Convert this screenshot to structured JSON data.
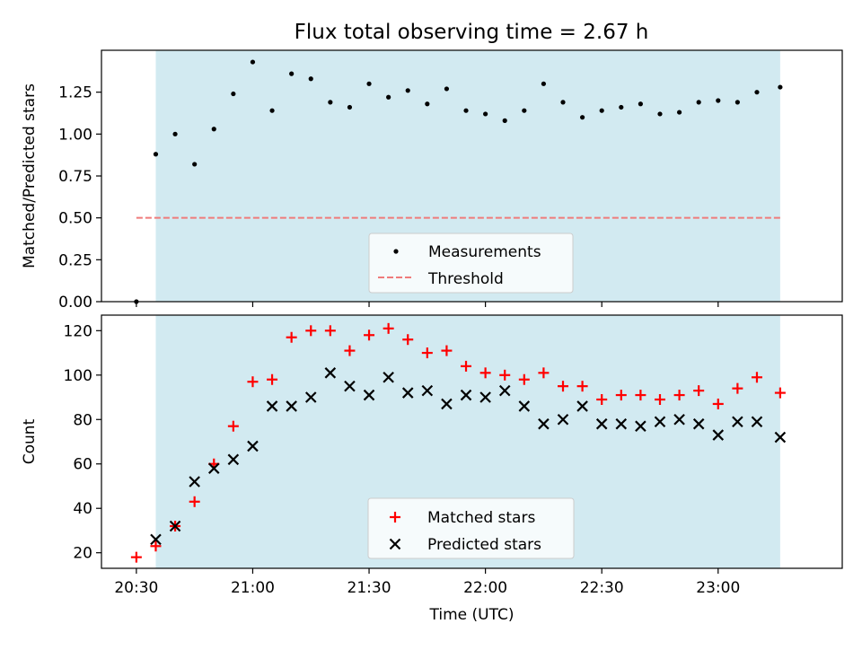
{
  "figure": {
    "title": "Flux total observing time = 2.67 h",
    "xlabel": "Time (UTC)",
    "x_ticks": [
      "20:30",
      "21:00",
      "21:30",
      "22:00",
      "22:30",
      "23:00"
    ]
  },
  "chart_data": [
    {
      "type": "scatter",
      "title": "Flux total observing time = 2.67 h",
      "xlabel": "Time (UTC)",
      "ylabel": "Matched/Predicted stars",
      "x_unit": "minutes after 20:30 UTC",
      "xlim": [
        -9,
        182
      ],
      "ylim": [
        0,
        1.5
      ],
      "y_ticks": [
        "0.00",
        "0.25",
        "0.50",
        "0.75",
        "1.00",
        "1.25"
      ],
      "y_tick_values": [
        0,
        0.25,
        0.5,
        0.75,
        1.0,
        1.25
      ],
      "shaded_region": [
        5,
        166
      ],
      "grid": false,
      "legend_position": "lower center",
      "series": [
        {
          "name": "Measurements",
          "marker": "dot",
          "color": "#000000",
          "x": [
            0,
            5,
            10,
            15,
            20,
            25,
            30,
            35,
            40,
            45,
            50,
            55,
            60,
            65,
            70,
            75,
            80,
            85,
            90,
            95,
            100,
            105,
            110,
            115,
            120,
            125,
            130,
            135,
            140,
            145,
            150,
            155,
            160,
            166
          ],
          "y": [
            0.0,
            0.88,
            1.0,
            0.82,
            1.03,
            1.24,
            1.43,
            1.14,
            1.36,
            1.33,
            1.19,
            1.16,
            1.3,
            1.22,
            1.26,
            1.18,
            1.27,
            1.14,
            1.12,
            1.08,
            1.14,
            1.3,
            1.19,
            1.1,
            1.14,
            1.16,
            1.18,
            1.12,
            1.13,
            1.19,
            1.2,
            1.19,
            1.25,
            1.28
          ]
        },
        {
          "name": "Threshold",
          "line_style": "dashed",
          "color": "#ef7b7b",
          "x": [
            0,
            166
          ],
          "y": [
            0.5,
            0.5
          ]
        }
      ]
    },
    {
      "type": "scatter",
      "xlabel": "Time (UTC)",
      "ylabel": "Count",
      "x_unit": "minutes after 20:30 UTC",
      "xlim": [
        -9,
        182
      ],
      "ylim": [
        13,
        127
      ],
      "y_ticks": [
        "20",
        "40",
        "60",
        "80",
        "100",
        "120"
      ],
      "y_tick_values": [
        20,
        40,
        60,
        80,
        100,
        120
      ],
      "shaded_region": [
        5,
        166
      ],
      "grid": false,
      "legend_position": "lower center",
      "series": [
        {
          "name": "Matched stars",
          "marker": "plus",
          "color": "#ff0000",
          "x": [
            0,
            5,
            10,
            15,
            20,
            25,
            30,
            35,
            40,
            45,
            50,
            55,
            60,
            65,
            70,
            75,
            80,
            85,
            90,
            95,
            100,
            105,
            110,
            115,
            120,
            125,
            130,
            135,
            140,
            145,
            150,
            155,
            160,
            166
          ],
          "y": [
            18,
            23,
            32,
            43,
            60,
            77,
            97,
            98,
            117,
            120,
            120,
            111,
            118,
            121,
            116,
            110,
            111,
            104,
            101,
            100,
            98,
            101,
            95,
            95,
            89,
            91,
            91,
            89,
            91,
            93,
            87,
            94,
            99,
            92
          ]
        },
        {
          "name": "Predicted stars",
          "marker": "x",
          "color": "#000000",
          "x": [
            5,
            10,
            15,
            20,
            25,
            30,
            35,
            40,
            45,
            50,
            55,
            60,
            65,
            70,
            75,
            80,
            85,
            90,
            95,
            100,
            105,
            110,
            115,
            120,
            125,
            130,
            135,
            140,
            145,
            150,
            155,
            160,
            166
          ],
          "y": [
            26,
            32,
            52,
            58,
            62,
            68,
            86,
            86,
            90,
            101,
            95,
            91,
            99,
            92,
            93,
            87,
            91,
            90,
            93,
            86,
            78,
            80,
            86,
            78,
            78,
            77,
            79,
            80,
            78,
            73,
            79,
            79,
            72
          ]
        }
      ]
    }
  ],
  "colors": {
    "shade": "#add8e6",
    "threshold": "#ef7b7b",
    "matched": "#ff0000",
    "predicted": "#000000"
  }
}
